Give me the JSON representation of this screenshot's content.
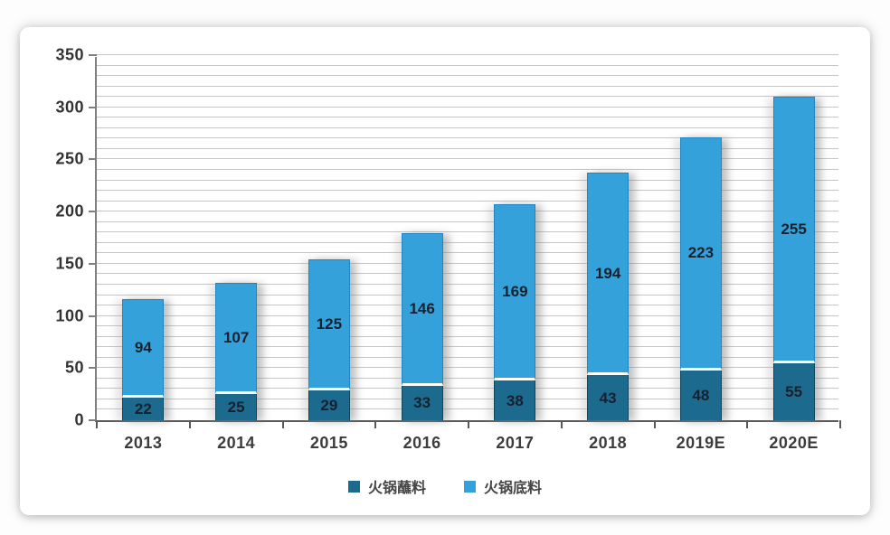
{
  "chart_data": {
    "type": "bar",
    "stacked": true,
    "categories": [
      "2013",
      "2014",
      "2015",
      "2016",
      "2017",
      "2018",
      "2019E",
      "2020E"
    ],
    "series": [
      {
        "name": "火锅蘸料",
        "color": "#1d6a8f",
        "border_color": "#10455c",
        "values": [
          22,
          25,
          29,
          33,
          38,
          43,
          48,
          55
        ]
      },
      {
        "name": "火锅底料",
        "color": "#35a1da",
        "border_color": "#2285c0",
        "values": [
          94,
          107,
          125,
          146,
          169,
          194,
          223,
          255
        ]
      }
    ],
    "title": "",
    "xlabel": "",
    "ylabel": "",
    "ylim": [
      0,
      350
    ],
    "y_major_step": 50,
    "y_minor_step": 10,
    "grid": true,
    "legend_position": "bottom",
    "data_labels": true
  },
  "colors": {
    "grid": "#c6c6c6",
    "y_axis": "#7f7f7f",
    "x_axis": "#595959",
    "label_text": "#17212e",
    "axis_text": "#3d3d3d",
    "card_bg": "#ffffff"
  }
}
